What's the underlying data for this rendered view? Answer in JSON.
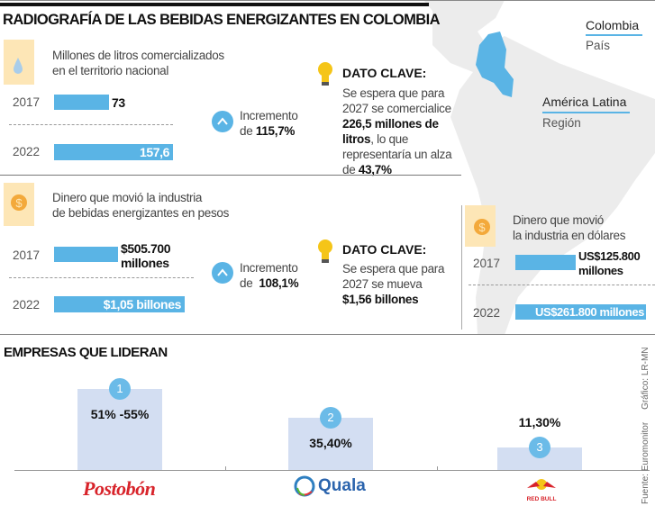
{
  "title": "RADIOGRAFÍA DE LAS BEBIDAS ENERGIZANTES EN COLOMBIA",
  "map": {
    "country_label": "Colombia",
    "country_sub": "País",
    "region_label": "América Latina",
    "region_sub": "Región",
    "highlight_color": "#5ab4e5"
  },
  "liters": {
    "icon": "water-drop-icon",
    "desc": [
      "Millones de litros comercializados",
      "en el territorio nacional"
    ],
    "rows": [
      {
        "year": "2017",
        "value": "73",
        "num": 73
      },
      {
        "year": "2022",
        "value": "157,6",
        "num": 157.6
      }
    ],
    "increase_label": "Incremento",
    "increase_prefix": "de",
    "increase_value": "115,7%",
    "key_title": "DATO CLAVE:",
    "key_text": [
      "Se espera que para",
      "2027 se comercialice"
    ],
    "key_bold1": "226,5 millones de",
    "key_bold2": "litros",
    "key_rest": ", lo que",
    "key_text2": "representaría un alza",
    "key_de": "de ",
    "key_bold3": "43,7%"
  },
  "pesos": {
    "icon": "coin-dollar-icon",
    "desc": [
      "Dinero que movió la industria",
      "de bebidas energizantes en pesos"
    ],
    "rows": [
      {
        "year": "2017",
        "value1": "$505.700",
        "value2": "millones"
      },
      {
        "year": "2022",
        "value": "$1,05 billones"
      }
    ],
    "increase_label": "Incremento",
    "increase_prefix": "de",
    "increase_value": "108,1%",
    "key_title": "DATO CLAVE:",
    "key_text": [
      "Se espera que para",
      "2027 se mueva"
    ],
    "key_bold": "$1,56 billones"
  },
  "dollars": {
    "icon": "coin-dollar-icon",
    "desc": [
      "Dinero que movió",
      "la industria en dólares"
    ],
    "rows": [
      {
        "year": "2017",
        "value1": "US$125.800",
        "value2": "millones"
      },
      {
        "year": "2022",
        "value": "US$261.800 millones"
      }
    ]
  },
  "chart_data": {
    "type": "bar",
    "title": "EMPRESAS QUE LIDERAN",
    "categories": [
      "Postobón",
      "Quala",
      "Red Bull"
    ],
    "labels": [
      "51% -55%",
      "35,40%",
      "11,30%"
    ],
    "values": [
      55,
      35.4,
      11.3
    ],
    "ranks": [
      "1",
      "2",
      "3"
    ],
    "bar_color": "#d3def2",
    "rank_color": "#6bbbe8"
  },
  "logos": {
    "postobon": "Postobón",
    "quala": "Quala",
    "redbull": "RED BULL"
  },
  "source": "Fuente: Euromonitor",
  "credit": "Gráfico: LR-MN"
}
